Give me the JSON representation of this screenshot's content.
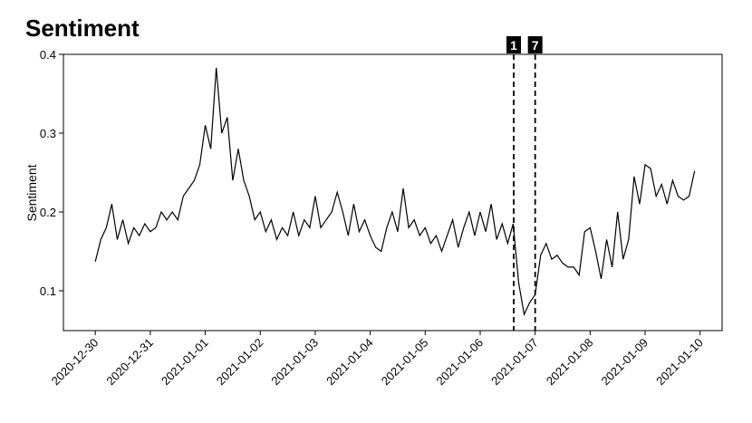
{
  "chart_data": {
    "type": "line",
    "title": "Sentiment",
    "y_label": "Sentiment",
    "x": [
      0,
      0.1,
      0.2,
      0.3,
      0.4,
      0.5,
      0.6,
      0.7,
      0.8,
      0.9,
      1,
      1.1,
      1.2,
      1.3,
      1.4,
      1.5,
      1.6,
      1.7,
      1.8,
      1.9,
      2,
      2.1,
      2.2,
      2.3,
      2.4,
      2.5,
      2.6,
      2.7,
      2.8,
      2.9,
      3,
      3.1,
      3.2,
      3.3,
      3.4,
      3.5,
      3.6,
      3.7,
      3.8,
      3.9,
      4,
      4.1,
      4.2,
      4.3,
      4.4,
      4.5,
      4.6,
      4.7,
      4.8,
      4.9,
      5,
      5.1,
      5.2,
      5.3,
      5.4,
      5.5,
      5.6,
      5.7,
      5.8,
      5.9,
      6,
      6.1,
      6.2,
      6.3,
      6.4,
      6.5,
      6.6,
      6.7,
      6.8,
      6.9,
      7,
      7.1,
      7.2,
      7.3,
      7.4,
      7.5,
      7.6,
      7.7,
      7.8,
      7.9,
      8,
      8.1,
      8.2,
      8.3,
      8.4,
      8.5,
      8.6,
      8.7,
      8.8,
      8.9,
      9,
      9.1,
      9.2,
      9.3,
      9.4,
      9.5,
      9.6,
      9.7,
      9.8,
      9.9,
      10,
      10.1,
      10.2,
      10.3,
      10.4,
      10.5,
      10.6,
      10.7,
      10.8,
      10.9
    ],
    "series": [
      {
        "color": "#000000",
        "values": [
          0.137,
          0.165,
          0.18,
          0.21,
          0.165,
          0.19,
          0.16,
          0.18,
          0.17,
          0.185,
          0.175,
          0.18,
          0.2,
          0.19,
          0.2,
          0.19,
          0.22,
          0.23,
          0.24,
          0.26,
          0.31,
          0.28,
          0.383,
          0.3,
          0.32,
          0.24,
          0.28,
          0.24,
          0.22,
          0.19,
          0.2,
          0.175,
          0.19,
          0.165,
          0.18,
          0.17,
          0.2,
          0.17,
          0.19,
          0.18,
          0.22,
          0.18,
          0.19,
          0.2,
          0.225,
          0.2,
          0.17,
          0.21,
          0.175,
          0.19,
          0.17,
          0.155,
          0.15,
          0.18,
          0.2,
          0.175,
          0.23,
          0.18,
          0.19,
          0.17,
          0.18,
          0.16,
          0.17,
          0.15,
          0.17,
          0.19,
          0.155,
          0.18,
          0.2,
          0.17,
          0.2,
          0.175,
          0.21,
          0.165,
          0.185,
          0.16,
          0.185,
          0.11,
          0.07,
          0.085,
          0.095,
          0.145,
          0.16,
          0.14,
          0.145,
          0.135,
          0.13,
          0.13,
          0.12,
          0.175,
          0.18,
          0.15,
          0.115,
          0.165,
          0.13,
          0.2,
          0.14,
          0.165,
          0.245,
          0.21,
          0.26,
          0.255,
          0.22,
          0.235,
          0.21,
          0.24,
          0.22,
          0.215,
          0.22,
          0.252
        ]
      }
    ],
    "xlim": [
      -0.58,
      11.4
    ],
    "xticks": [
      {
        "value": 0,
        "label": "2020-12-30"
      },
      {
        "value": 1,
        "label": "2020-12-31"
      },
      {
        "value": 2,
        "label": "2021-01-01"
      },
      {
        "value": 3,
        "label": "2021-01-02"
      },
      {
        "value": 4,
        "label": "2021-01-03"
      },
      {
        "value": 5,
        "label": "2021-01-04"
      },
      {
        "value": 6,
        "label": "2021-01-05"
      },
      {
        "value": 7,
        "label": "2021-01-06"
      },
      {
        "value": 8,
        "label": "2021-01-07"
      },
      {
        "value": 9,
        "label": "2021-01-08"
      },
      {
        "value": 10,
        "label": "2021-01-09"
      },
      {
        "value": 11,
        "label": "2021-01-10"
      }
    ],
    "ylim": [
      0.0494,
      0.4
    ],
    "yticks": [
      0.1,
      0.2,
      0.3,
      0.4
    ],
    "annotations": [
      {
        "x": 7.61,
        "label": "1"
      },
      {
        "x": 8.0,
        "label": "7"
      }
    ]
  }
}
